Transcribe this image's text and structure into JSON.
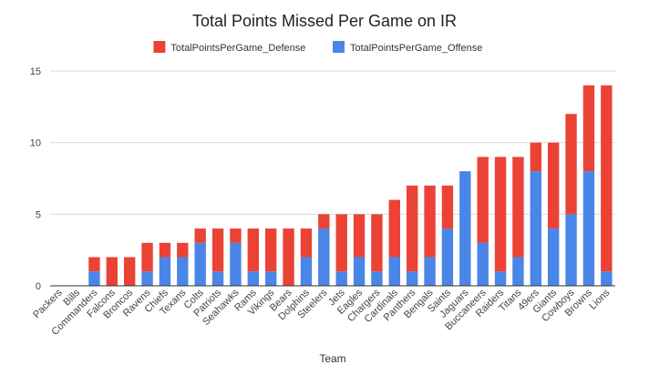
{
  "chart_data": {
    "type": "bar",
    "stacked": true,
    "title": "Total Points Missed Per Game on IR",
    "xlabel": "Team",
    "ylabel": "",
    "ylim": [
      0,
      15
    ],
    "yticks": [
      0,
      5,
      10,
      15
    ],
    "grid": true,
    "legend_position": "top",
    "categories": [
      "Packers",
      "Bills",
      "Commanders",
      "Falcons",
      "Broncos",
      "Ravens",
      "Chiefs",
      "Texans",
      "Colts",
      "Patriots",
      "Seahawks",
      "Rams",
      "Vikings",
      "Bears",
      "Dolphins",
      "Steelers",
      "Jets",
      "Eagles",
      "Chargers",
      "Cardinals",
      "Panthers",
      "Bengals",
      "Saints",
      "Jaguars",
      "Buccaneers",
      "Raiders",
      "Titans",
      "49ers",
      "Giants",
      "Cowboys",
      "Browns",
      "Lions"
    ],
    "series": [
      {
        "name": "TotalPointsPerGame_Offense",
        "color": "#4a86e8",
        "values": [
          0,
          0,
          1,
          0,
          0,
          1,
          2,
          2,
          3,
          1,
          3,
          1,
          1,
          0,
          2,
          4,
          1,
          2,
          1,
          2,
          1,
          2,
          4,
          8,
          3,
          1,
          2,
          8,
          4,
          5,
          8,
          1
        ]
      },
      {
        "name": "TotalPointsPerGame_Defense",
        "color": "#ea4335",
        "values": [
          0,
          0,
          1,
          2,
          2,
          2,
          1,
          1,
          1,
          3,
          1,
          3,
          3,
          4,
          2,
          1,
          4,
          3,
          4,
          4,
          6,
          5,
          3,
          0,
          6,
          8,
          7,
          2,
          6,
          7,
          6,
          13
        ]
      }
    ],
    "legend_order": [
      1,
      0
    ]
  }
}
